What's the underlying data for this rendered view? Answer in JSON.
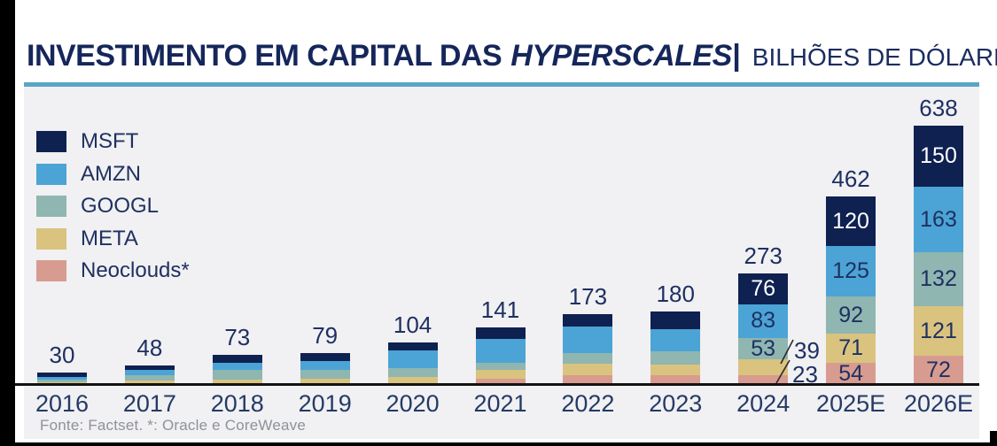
{
  "title": {
    "main": "INVESTIMENTO EM CAPITAL DAS",
    "emphasis": "HYPERSCALES|",
    "subtitle": "BILHÕES DE DÓLARES"
  },
  "legend": {
    "items": [
      {
        "label": "MSFT",
        "color": "#0E2150"
      },
      {
        "label": "AMZN",
        "color": "#4BA4D5"
      },
      {
        "label": "GOOGL",
        "color": "#8FB6B0"
      },
      {
        "label": "META",
        "color": "#D9C37F"
      },
      {
        "label": "Neoclouds*",
        "color": "#D89B90"
      }
    ]
  },
  "annotations": {
    "meta_2024": "39",
    "neoclouds_2024": "23"
  },
  "footer": {
    "source": "Fonte: Factset. *: Oracle e CoreWeave"
  },
  "colors": {
    "accent_divider": "#59A5C3",
    "chart_background": "#F1F0F2",
    "axis": "#121212",
    "text_navy": "#1E3062",
    "msft_label_text": "#FFFFFF"
  },
  "chart_data": {
    "type": "bar",
    "stacked": true,
    "title": "Investimento em capital das hyperscales",
    "ylabel": "Bilhões de dólares",
    "xlabel": "",
    "grid": false,
    "legend_position": "top-left",
    "categories": [
      "2016",
      "2017",
      "2018",
      "2019",
      "2020",
      "2021",
      "2022",
      "2023",
      "2024",
      "2025E",
      "2026E"
    ],
    "totals": [
      30,
      48,
      73,
      79,
      104,
      141,
      173,
      180,
      273,
      462,
      638
    ],
    "series": [
      {
        "name": "MSFT",
        "color": "#0E2150",
        "label_color": "#FFFFFF",
        "values": [
          11,
          12,
          19,
          20,
          20,
          28,
          30,
          42,
          76,
          120,
          150
        ]
      },
      {
        "name": "AMZN",
        "color": "#4BA4D5",
        "label_color": "#1E3062",
        "values": [
          7,
          13,
          18,
          22,
          42,
          58,
          65,
          55,
          83,
          125,
          163
        ]
      },
      {
        "name": "GOOGL",
        "color": "#8FB6B0",
        "label_color": "#1E3062",
        "values": [
          6,
          12,
          22,
          22,
          23,
          19,
          25,
          33,
          53,
          92,
          132
        ]
      },
      {
        "name": "META",
        "color": "#D9C37F",
        "label_color": "#1E3062",
        "values": [
          6,
          11,
          14,
          15,
          19,
          20,
          30,
          26,
          39,
          71,
          121
        ]
      },
      {
        "name": "Neoclouds*",
        "color": "#D89B90",
        "label_color": "#1E3062",
        "values": [
          0,
          0,
          0,
          0,
          0,
          16,
          23,
          24,
          23,
          54,
          72
        ]
      }
    ],
    "inline_segment_labels": {
      "2024": [
        "MSFT",
        "AMZN",
        "GOOGL"
      ],
      "2025E": [
        "MSFT",
        "AMZN",
        "GOOGL",
        "META",
        "Neoclouds*"
      ],
      "2026E": [
        "MSFT",
        "AMZN",
        "GOOGL",
        "META",
        "Neoclouds*"
      ]
    },
    "callouts_2024": {
      "META": "39",
      "Neoclouds*": "23"
    }
  }
}
